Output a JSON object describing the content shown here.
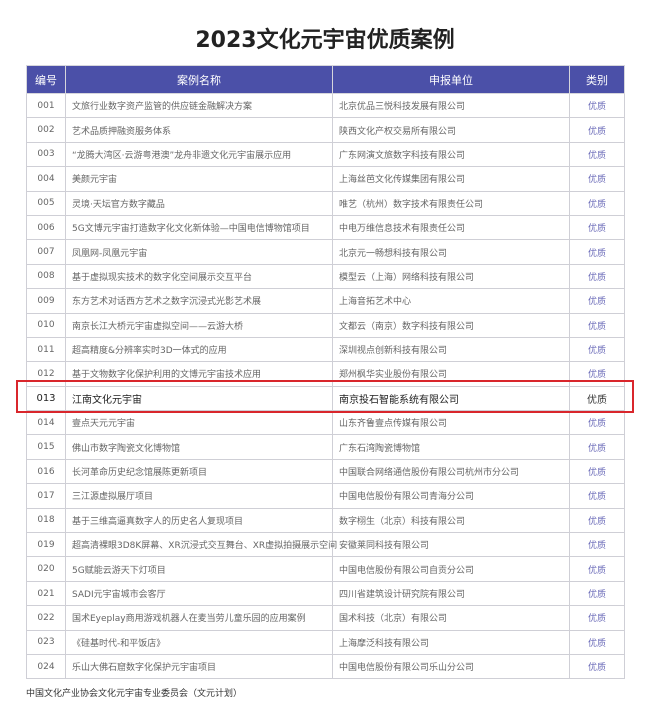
{
  "title": "2023文化元宇宙优质案例",
  "columns": [
    "编号",
    "案例名称",
    "申报单位",
    "类别"
  ],
  "rows": [
    {
      "no": "001",
      "name": "文旅行业数字资产监管的供应链金融解决方案",
      "unit": "北京优品三悦科技发展有限公司",
      "category": "优质"
    },
    {
      "no": "002",
      "name": "艺术品质押融资服务体系",
      "unit": "陕西文化产权交易所有限公司",
      "category": "优质"
    },
    {
      "no": "003",
      "name": "“龙腾大湾区·云游粤港澳”龙舟非遗文化元宇宙展示应用",
      "unit": "广东网演文旅数字科技有限公司",
      "category": "优质"
    },
    {
      "no": "004",
      "name": "美颜元宇宙",
      "unit": "上海丝芭文化传媒集团有限公司",
      "category": "优质"
    },
    {
      "no": "005",
      "name": "灵境·天坛官方数字藏品",
      "unit": "唯艺（杭州）数字技术有限责任公司",
      "category": "优质"
    },
    {
      "no": "006",
      "name": "5G文博元宇宙打造数字化文化新体验—中国电信博物馆项目",
      "unit": "中电万维信息技术有限责任公司",
      "category": "优质"
    },
    {
      "no": "007",
      "name": "凤凰网-凤凰元宇宙",
      "unit": "北京元一畅想科技有限公司",
      "category": "优质"
    },
    {
      "no": "008",
      "name": "基于虚拟现实技术的数字化空间展示交互平台",
      "unit": "模型云（上海）网络科技有限公司",
      "category": "优质"
    },
    {
      "no": "009",
      "name": "东方艺术对话西方艺术之数字沉浸式光影艺术展",
      "unit": "上海音拓艺术中心",
      "category": "优质"
    },
    {
      "no": "010",
      "name": "南京长江大桥元宇宙虚拟空间——云游大桥",
      "unit": "文都云（南京）数字科技有限公司",
      "category": "优质"
    },
    {
      "no": "011",
      "name": "超高精度&分辨率实时3D一体式的应用",
      "unit": "深圳视点创新科技有限公司",
      "category": "优质"
    },
    {
      "no": "012",
      "name": "基于文物数字化保护利用的文博元宇宙技术应用",
      "unit": "郑州枫华实业股份有限公司",
      "category": "优质"
    },
    {
      "no": "013",
      "name": "江南文化元宇宙",
      "unit": "南京投石智能系统有限公司",
      "category": "优质"
    },
    {
      "no": "014",
      "name": "壹点天元元宇宙",
      "unit": "山东齐鲁壹点传媒有限公司",
      "category": "优质"
    },
    {
      "no": "015",
      "name": "佛山市数字陶瓷文化博物馆",
      "unit": "广东石湾陶瓷博物馆",
      "category": "优质"
    },
    {
      "no": "016",
      "name": "长河革命历史纪念馆展陈更新项目",
      "unit": "中国联合网络通信股份有限公司杭州市分公司",
      "category": "优质"
    },
    {
      "no": "017",
      "name": "三江源虚拟展厅项目",
      "unit": "中国电信股份有限公司青海分公司",
      "category": "优质"
    },
    {
      "no": "018",
      "name": "基于三维高逼真数字人的历史名人复现项目",
      "unit": "数字栩生（北京）科技有限公司",
      "category": "优质"
    },
    {
      "no": "019",
      "name": "超高清裸眼3D8K屏幕、XR沉浸式交互舞台、XR虚拟拍摄展示空间",
      "unit": "安徽莱同科技有限公司",
      "category": "优质"
    },
    {
      "no": "020",
      "name": "5G赋能云游天下灯项目",
      "unit": "中国电信股份有限公司自贡分公司",
      "category": "优质"
    },
    {
      "no": "021",
      "name": "SADI元宇宙城市会客厅",
      "unit": "四川省建筑设计研究院有限公司",
      "category": "优质"
    },
    {
      "no": "022",
      "name": "国术Eyeplay商用游戏机器人在麦当劳儿童乐园的应用案例",
      "unit": "国术科技（北京）有限公司",
      "category": "优质"
    },
    {
      "no": "023",
      "name": "《硅基时代-和平饭店》",
      "unit": "上海摩泛科技有限公司",
      "category": "优质"
    },
    {
      "no": "024",
      "name": "乐山大佛石窟数字化保护元宇宙项目",
      "unit": "中国电信股份有限公司乐山分公司",
      "category": "优质"
    }
  ],
  "highlighted_row": "013",
  "footer": "中国文化产业协会文化元宇宙专业委员会（文元计划）",
  "colors": {
    "header_bg": "#4b50a8",
    "highlight_border": "#d9262c",
    "category_text": "#6a6ab8"
  }
}
